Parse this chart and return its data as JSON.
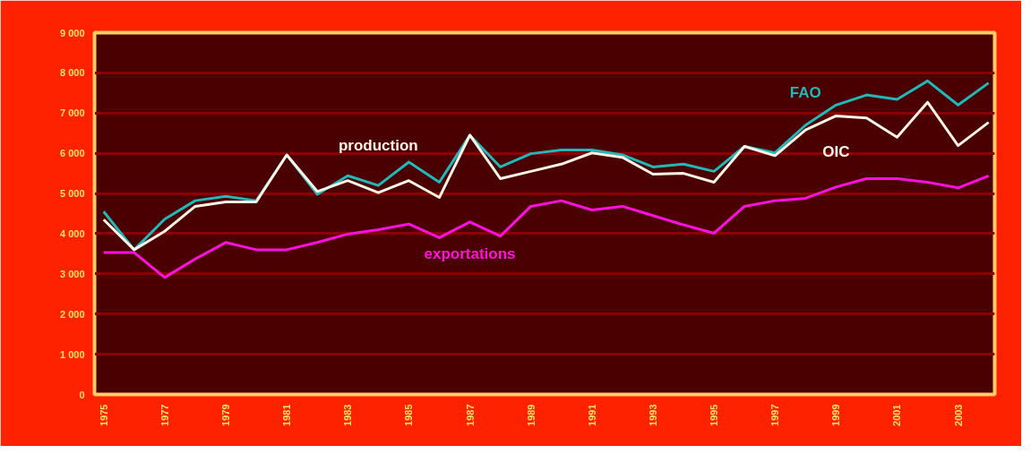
{
  "chart_data": {
    "type": "line",
    "x": [
      1975,
      1976,
      1977,
      1978,
      1979,
      1980,
      1981,
      1982,
      1983,
      1984,
      1985,
      1986,
      1987,
      1988,
      1989,
      1990,
      1991,
      1992,
      1993,
      1994,
      1995,
      1996,
      1997,
      1998,
      1999,
      2000,
      2001,
      2002,
      2003,
      2004
    ],
    "series": [
      {
        "name": "FAO",
        "color": "#20b8b8",
        "values": [
          4550,
          3600,
          4360,
          4820,
          4930,
          4820,
          5960,
          4980,
          5440,
          5200,
          5780,
          5280,
          6450,
          5660,
          5990,
          6080,
          6080,
          5960,
          5660,
          5730,
          5550,
          6170,
          6010,
          6700,
          7200,
          7450,
          7340,
          7800,
          7200,
          7750
        ]
      },
      {
        "name": "OIC",
        "color": "#fff2e6",
        "values": [
          4350,
          3600,
          4060,
          4680,
          4790,
          4790,
          5960,
          5050,
          5320,
          5020,
          5320,
          4900,
          6450,
          5370,
          5550,
          5730,
          6010,
          5900,
          5480,
          5500,
          5280,
          6170,
          5940,
          6580,
          6930,
          6880,
          6400,
          7270,
          6190,
          6770
        ]
      },
      {
        "name": "exportations",
        "color": "#ff10e0",
        "values": [
          3530,
          3530,
          2910,
          3370,
          3780,
          3600,
          3600,
          3780,
          3990,
          4100,
          4240,
          3900,
          4290,
          3940,
          4680,
          4820,
          4590,
          4680,
          4450,
          4220,
          4010,
          4680,
          4820,
          4880,
          5160,
          5370,
          5370,
          5280,
          5140,
          5440
        ]
      }
    ],
    "annotations": [
      "production"
    ],
    "xlim": [
      1974.7,
      2004.2
    ],
    "xticks": [
      1975,
      1977,
      1979,
      1981,
      1983,
      1985,
      1987,
      1989,
      1991,
      1993,
      1995,
      1997,
      1999,
      2001,
      2003
    ],
    "ylim": [
      0,
      9000
    ],
    "yticks": [
      0,
      {
        "value": 1000,
        "label": "1 000"
      },
      {
        "value": 2000,
        "label": "2 000"
      },
      {
        "value": 3000,
        "label": "3 000"
      },
      {
        "value": 4000,
        "label": "4 000"
      },
      {
        "value": 5000,
        "label": "5 000"
      },
      {
        "value": 6000,
        "label": "6 000"
      },
      {
        "value": 7000,
        "label": "7 000"
      },
      {
        "value": 8000,
        "label": "8 000"
      },
      {
        "value": 9000,
        "label": "9 000"
      }
    ],
    "grid": "y",
    "marker": "none",
    "line_style": "solid"
  }
}
